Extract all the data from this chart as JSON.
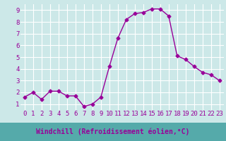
{
  "x": [
    0,
    1,
    2,
    3,
    4,
    5,
    6,
    7,
    8,
    9,
    10,
    11,
    12,
    13,
    14,
    15,
    16,
    17,
    18,
    19,
    20,
    21,
    22,
    23
  ],
  "y": [
    1.6,
    2.0,
    1.4,
    2.1,
    2.1,
    1.7,
    1.7,
    0.8,
    1.0,
    1.6,
    4.2,
    6.6,
    8.2,
    8.7,
    8.8,
    9.1,
    9.1,
    8.5,
    5.1,
    4.8,
    4.2,
    3.7,
    3.5,
    3.0
  ],
  "line_color": "#990099",
  "marker": "D",
  "marker_size": 2.5,
  "bg_color": "#cce8e8",
  "grid_color": "#ffffff",
  "xlabel": "Windchill (Refroidissement éolien,°C)",
  "xlabel_color": "#990099",
  "xlabel_bar_color": "#55aaaa",
  "ylabel_ticks": [
    1,
    2,
    3,
    4,
    5,
    6,
    7,
    8,
    9
  ],
  "xlim": [
    -0.5,
    23.5
  ],
  "ylim": [
    0.5,
    9.5
  ],
  "tick_label_color": "#990099",
  "axis_label_fontsize": 7.0,
  "tick_fontsize": 6.5
}
